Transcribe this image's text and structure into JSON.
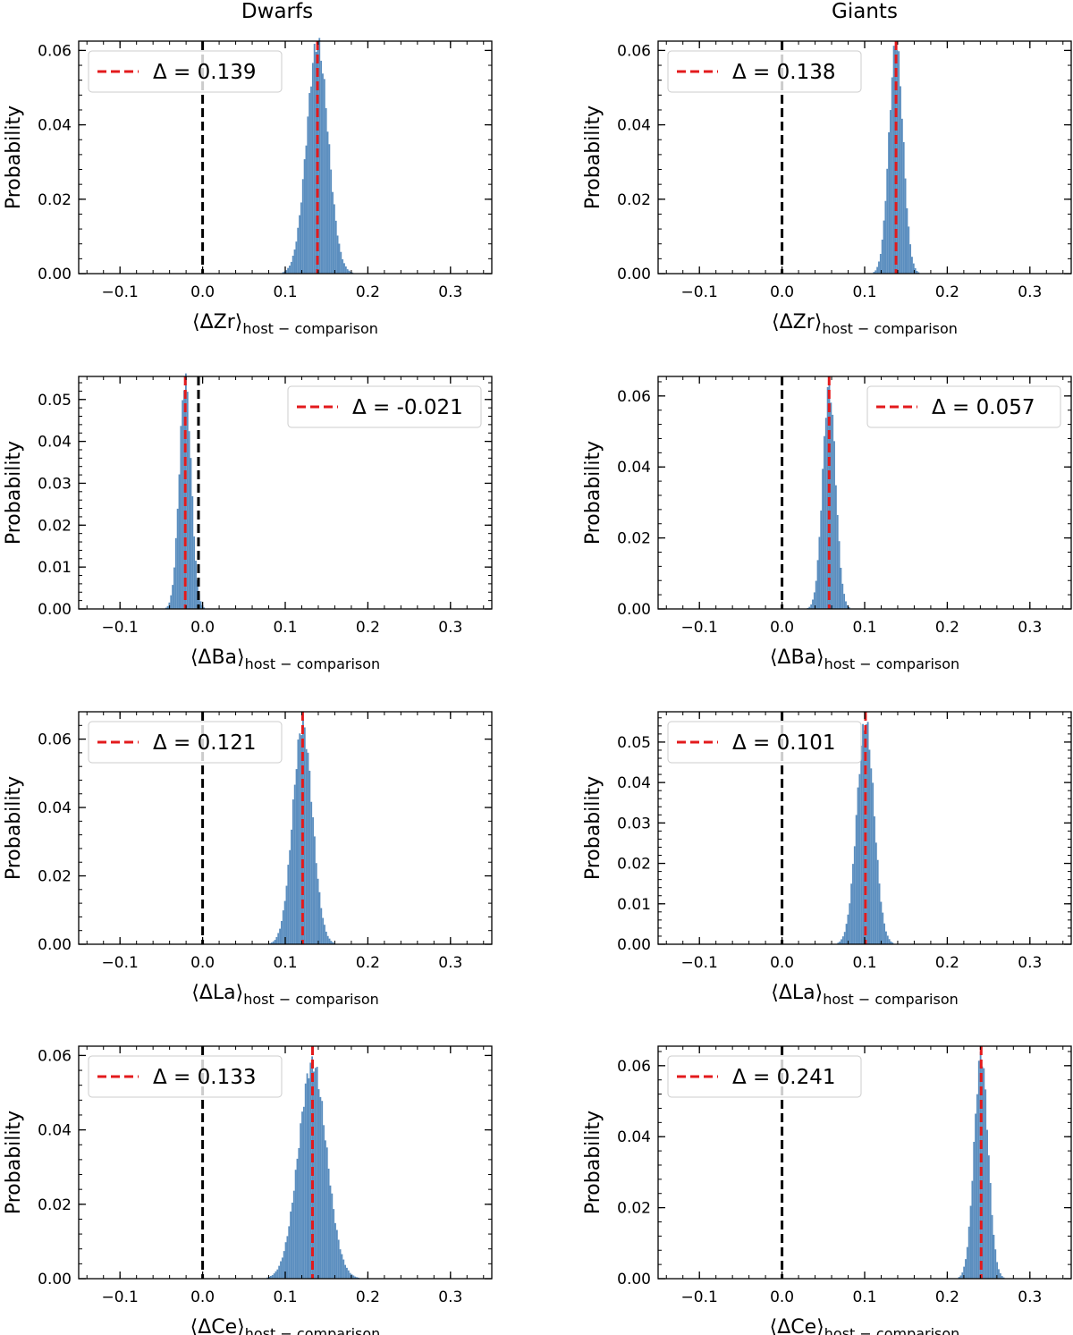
{
  "figure": {
    "column_titles": [
      "Dwarfs",
      "Giants"
    ]
  },
  "colors": {
    "histogram": "#5b8ebf",
    "median_line": "#e31a1c",
    "zero_line": "#000000"
  },
  "chart_data": [
    {
      "type": "bar",
      "column": 0,
      "row": 0,
      "xlabel_main": "⟨ΔZr⟩",
      "xlabel_sub": "host − comparison",
      "ylabel": "Probability",
      "xlim": [
        -0.15,
        0.35
      ],
      "ylim": [
        0,
        0.0625
      ],
      "xticks": [
        "−0.1",
        "0.0",
        "0.1",
        "0.2",
        "0.3"
      ],
      "xtick_values": [
        -0.1,
        0.0,
        0.1,
        0.2,
        0.3
      ],
      "yticks": [
        "0.00",
        "0.02",
        "0.04",
        "0.06"
      ],
      "ytick_values": [
        0,
        0.02,
        0.04,
        0.06
      ],
      "mean": 0.139,
      "sigma": 0.013,
      "peak": 0.062,
      "zero_line": 0.0,
      "legend_label": "Δ = 0.139",
      "legend_loc": "upper left"
    },
    {
      "type": "bar",
      "column": 0,
      "row": 1,
      "xlabel_main": "⟨ΔBa⟩",
      "xlabel_sub": "host − comparison",
      "ylabel": "Probability",
      "xlim": [
        -0.15,
        0.35
      ],
      "ylim": [
        0,
        0.0555
      ],
      "xticks": [
        "−0.1",
        "0.0",
        "0.1",
        "0.2",
        "0.3"
      ],
      "xtick_values": [
        -0.1,
        0.0,
        0.1,
        0.2,
        0.3
      ],
      "yticks": [
        "0.00",
        "0.01",
        "0.02",
        "0.03",
        "0.04",
        "0.05"
      ],
      "ytick_values": [
        0,
        0.01,
        0.02,
        0.03,
        0.04,
        0.05
      ],
      "mean": -0.021,
      "sigma": 0.0072,
      "peak": 0.055,
      "zero_line": -0.005,
      "legend_label": "Δ = -0.021",
      "legend_loc": "upper right"
    },
    {
      "type": "bar",
      "column": 0,
      "row": 2,
      "xlabel_main": "⟨ΔLa⟩",
      "xlabel_sub": "host − comparison",
      "ylabel": "Probability",
      "xlim": [
        -0.15,
        0.35
      ],
      "ylim": [
        0,
        0.068
      ],
      "xticks": [
        "−0.1",
        "0.0",
        "0.1",
        "0.2",
        "0.3"
      ],
      "xtick_values": [
        -0.1,
        0.0,
        0.1,
        0.2,
        0.3
      ],
      "yticks": [
        "0.00",
        "0.02",
        "0.04",
        "0.06"
      ],
      "ytick_values": [
        0,
        0.02,
        0.04,
        0.06
      ],
      "mean": 0.121,
      "sigma": 0.012,
      "peak": 0.064,
      "zero_line": 0.0,
      "legend_label": "Δ = 0.121",
      "legend_loc": "upper left"
    },
    {
      "type": "bar",
      "column": 0,
      "row": 3,
      "xlabel_main": "⟨ΔCe⟩",
      "xlabel_sub": "host − comparison",
      "ylabel": "Probability",
      "xlim": [
        -0.15,
        0.35
      ],
      "ylim": [
        0,
        0.0625
      ],
      "xticks": [
        "−0.1",
        "0.0",
        "0.1",
        "0.2",
        "0.3"
      ],
      "xtick_values": [
        -0.1,
        0.0,
        0.1,
        0.2,
        0.3
      ],
      "yticks": [
        "0.00",
        "0.02",
        "0.04",
        "0.06"
      ],
      "ytick_values": [
        0,
        0.02,
        0.04,
        0.06
      ],
      "mean": 0.133,
      "sigma": 0.017,
      "peak": 0.058,
      "zero_line": 0.0,
      "legend_label": "Δ = 0.133",
      "legend_loc": "upper left"
    },
    {
      "type": "bar",
      "column": 1,
      "row": 0,
      "xlabel_main": "⟨ΔZr⟩",
      "xlabel_sub": "host − comparison",
      "ylabel": "Probability",
      "xlim": [
        -0.15,
        0.35
      ],
      "ylim": [
        0,
        0.0625
      ],
      "xticks": [
        "−0.1",
        "0.0",
        "0.1",
        "0.2",
        "0.3"
      ],
      "xtick_values": [
        -0.1,
        0.0,
        0.1,
        0.2,
        0.3
      ],
      "yticks": [
        "0.00",
        "0.02",
        "0.04",
        "0.06"
      ],
      "ytick_values": [
        0,
        0.02,
        0.04,
        0.06
      ],
      "mean": 0.138,
      "sigma": 0.0085,
      "peak": 0.062,
      "zero_line": 0.0,
      "legend_label": "Δ = 0.138",
      "legend_loc": "upper left"
    },
    {
      "type": "bar",
      "column": 1,
      "row": 1,
      "xlabel_main": "⟨ΔBa⟩",
      "xlabel_sub": "host − comparison",
      "ylabel": "Probability",
      "xlim": [
        -0.15,
        0.35
      ],
      "ylim": [
        0,
        0.0655
      ],
      "xticks": [
        "−0.1",
        "0.0",
        "0.1",
        "0.2",
        "0.3"
      ],
      "xtick_values": [
        -0.1,
        0.0,
        0.1,
        0.2,
        0.3
      ],
      "yticks": [
        "0.00",
        "0.02",
        "0.04",
        "0.06"
      ],
      "ytick_values": [
        0,
        0.02,
        0.04,
        0.06
      ],
      "mean": 0.057,
      "sigma": 0.0078,
      "peak": 0.063,
      "zero_line": 0.0,
      "legend_label": "Δ = 0.057",
      "legend_loc": "upper right"
    },
    {
      "type": "bar",
      "column": 1,
      "row": 2,
      "xlabel_main": "⟨ΔLa⟩",
      "xlabel_sub": "host − comparison",
      "ylabel": "Probability",
      "xlim": [
        -0.15,
        0.35
      ],
      "ylim": [
        0,
        0.0575
      ],
      "xticks": [
        "−0.1",
        "0.0",
        "0.1",
        "0.2",
        "0.3"
      ],
      "xtick_values": [
        -0.1,
        0.0,
        0.1,
        0.2,
        0.3
      ],
      "yticks": [
        "0.00",
        "0.01",
        "0.02",
        "0.03",
        "0.04",
        "0.05"
      ],
      "ytick_values": [
        0,
        0.01,
        0.02,
        0.03,
        0.04,
        0.05
      ],
      "mean": 0.101,
      "sigma": 0.0105,
      "peak": 0.055,
      "zero_line": 0.0,
      "legend_label": "Δ = 0.101",
      "legend_loc": "upper left"
    },
    {
      "type": "bar",
      "column": 1,
      "row": 3,
      "xlabel_main": "⟨ΔCe⟩",
      "xlabel_sub": "host − comparison",
      "ylabel": "Probability",
      "xlim": [
        -0.15,
        0.35
      ],
      "ylim": [
        0,
        0.0655
      ],
      "xticks": [
        "−0.1",
        "0.0",
        "0.1",
        "0.2",
        "0.3"
      ],
      "xtick_values": [
        -0.1,
        0.0,
        0.1,
        0.2,
        0.3
      ],
      "yticks": [
        "0.00",
        "0.02",
        "0.04",
        "0.06"
      ],
      "ytick_values": [
        0,
        0.02,
        0.04,
        0.06
      ],
      "mean": 0.241,
      "sigma": 0.0085,
      "peak": 0.063,
      "zero_line": 0.0,
      "legend_label": "Δ = 0.241",
      "legend_loc": "upper left"
    }
  ]
}
